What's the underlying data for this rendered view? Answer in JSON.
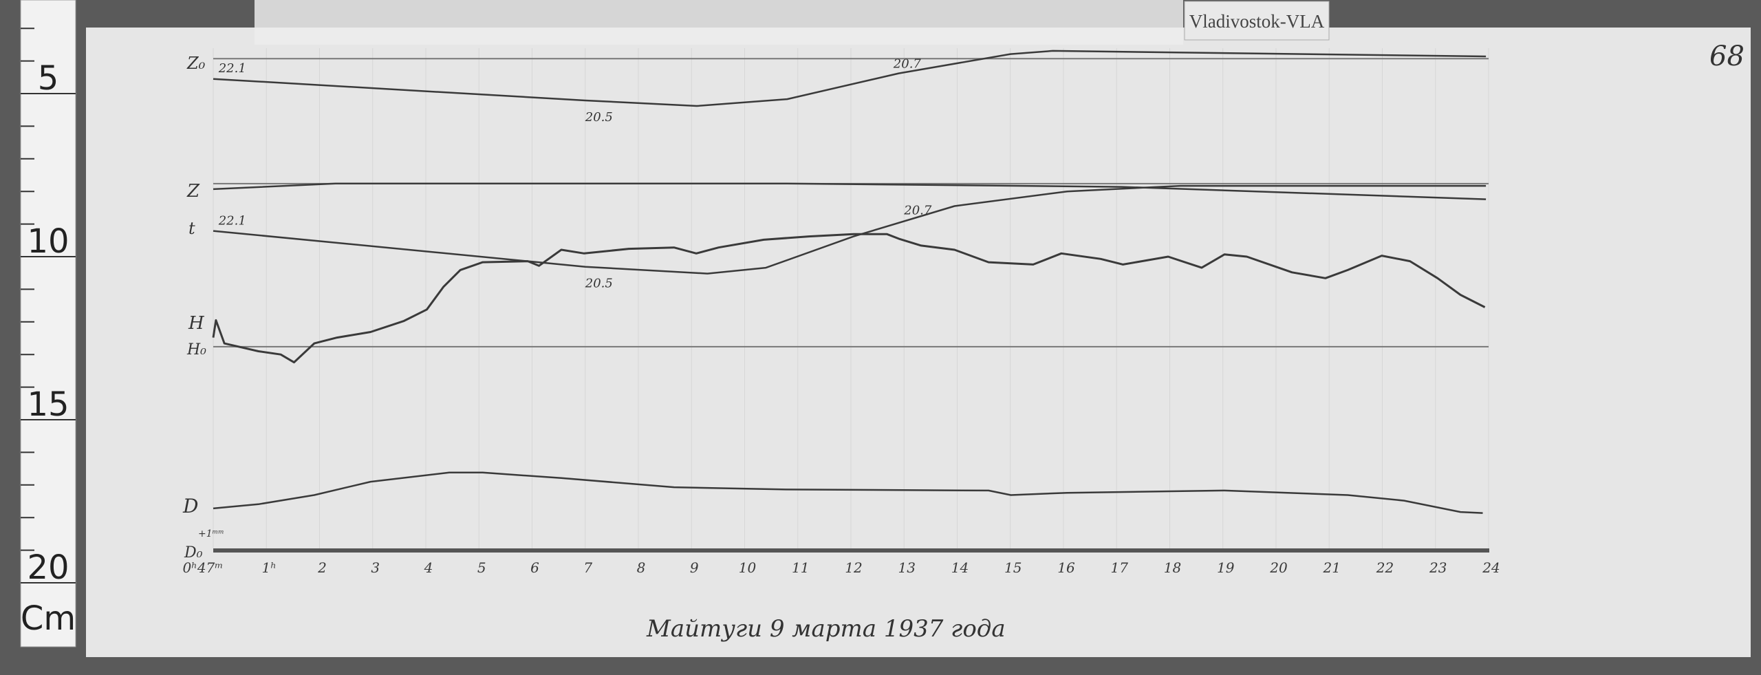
{
  "station_label": "Vladivostok-VLA",
  "page_number": "68",
  "caption": "Майтуги 9 марта 1937 года",
  "ruler": {
    "ticks": [
      "5",
      "10",
      "15",
      "20"
    ],
    "unit": "Cm"
  },
  "colors": {
    "paper": "#e6e6e6",
    "trace": "#3a3a3a",
    "background": "#5e5e5e"
  },
  "chart_data": {
    "type": "line",
    "title": "",
    "xlabel": "",
    "ylabel": "",
    "x_unit": "hours",
    "y_unit": "cm (ruler scale)",
    "xlim": [
      0,
      24
    ],
    "ylim": [
      3,
      20
    ],
    "x_tick_labels": [
      "0ʰ47ᵐ",
      "1ʰ",
      "2",
      "3",
      "4",
      "5",
      "6",
      "7",
      "8",
      "9",
      "10",
      "11",
      "12",
      "13",
      "14",
      "15",
      "16",
      "17",
      "18",
      "19",
      "20",
      "21",
      "22",
      "23",
      "24"
    ],
    "trace_labels": {
      "z0": "Z₀",
      "z": "Z",
      "t": "t",
      "h": "H",
      "h0": "H₀",
      "d": "D",
      "d0": "D₀",
      "scale_mark": "+1ᵐᵐ"
    },
    "annotations": [
      {
        "text": "22.1",
        "trace": "upper_temperature",
        "x": 0.1
      },
      {
        "text": "20.5",
        "trace": "upper_temperature",
        "x": 7.0
      },
      {
        "text": "20.7",
        "trace": "upper_temperature",
        "x": 12.8
      },
      {
        "text": "22.1",
        "trace": "lower_temperature",
        "x": 0.1
      },
      {
        "text": "20.5",
        "trace": "lower_temperature",
        "x": 7.0
      },
      {
        "text": "20.7",
        "trace": "lower_temperature",
        "x": 13.0
      }
    ],
    "baselines": [
      {
        "name": "Z₀",
        "y": 3.93
      },
      {
        "name": "Z",
        "y": 7.76
      },
      {
        "name": "H₀",
        "y": 12.76
      },
      {
        "name": "D₀",
        "y": 19.03
      }
    ],
    "series": [
      {
        "name": "t",
        "key": "upper_temperature",
        "x": [
          0,
          7.0,
          9.1,
          10.8,
          12.9,
          15.0,
          15.8,
          23.95
        ],
        "y": [
          4.55,
          5.21,
          5.38,
          5.17,
          4.38,
          3.79,
          3.69,
          3.86
        ]
      },
      {
        "name": "Z",
        "key": "z",
        "x": [
          0,
          2.3,
          7.0,
          10.8,
          17.1,
          23.95
        ],
        "y": [
          7.93,
          7.76,
          7.76,
          7.76,
          7.86,
          8.24
        ]
      },
      {
        "name": "t",
        "key": "lower_temperature",
        "x": [
          0,
          7.0,
          9.3,
          10.4,
          12.05,
          13.95,
          16.07,
          18.2,
          23.95
        ],
        "y": [
          9.21,
          10.31,
          10.52,
          10.34,
          9.38,
          8.45,
          8.0,
          7.83,
          7.83
        ]
      },
      {
        "name": "H",
        "key": "h",
        "x": [
          0,
          0.05,
          0.21,
          0.85,
          1.27,
          1.52,
          1.9,
          2.33,
          2.96,
          3.59,
          4.02,
          4.33,
          4.65,
          5.07,
          5.92,
          6.13,
          6.55,
          6.98,
          7.82,
          8.67,
          9.09,
          9.51,
          10.36,
          11.21,
          12.05,
          12.68,
          12.9,
          13.32,
          13.95,
          14.59,
          15.43,
          15.96,
          16.7,
          17.12,
          17.97,
          18.6,
          19.03,
          19.45,
          20.3,
          20.93,
          21.35,
          21.99,
          22.52,
          23.04,
          23.47,
          23.93
        ],
        "y": [
          12.48,
          11.95,
          12.66,
          12.9,
          13.0,
          13.24,
          12.66,
          12.48,
          12.31,
          11.97,
          11.62,
          10.93,
          10.41,
          10.17,
          10.14,
          10.28,
          9.79,
          9.9,
          9.76,
          9.72,
          9.9,
          9.72,
          9.48,
          9.38,
          9.31,
          9.31,
          9.45,
          9.66,
          9.79,
          10.17,
          10.24,
          9.9,
          10.07,
          10.24,
          10.0,
          10.34,
          9.93,
          10.0,
          10.48,
          10.66,
          10.41,
          9.97,
          10.14,
          10.66,
          11.17,
          11.55
        ]
      },
      {
        "name": "D",
        "key": "d",
        "x": [
          0,
          0.85,
          1.9,
          2.96,
          4.44,
          5.07,
          6.55,
          8.67,
          10.78,
          14.59,
          15.01,
          16.07,
          19.03,
          21.35,
          22.41,
          23.47,
          23.89
        ],
        "y": [
          17.72,
          17.59,
          17.31,
          16.9,
          16.62,
          16.62,
          16.79,
          17.07,
          17.14,
          17.17,
          17.31,
          17.24,
          17.17,
          17.31,
          17.48,
          17.83,
          17.86
        ]
      }
    ]
  }
}
